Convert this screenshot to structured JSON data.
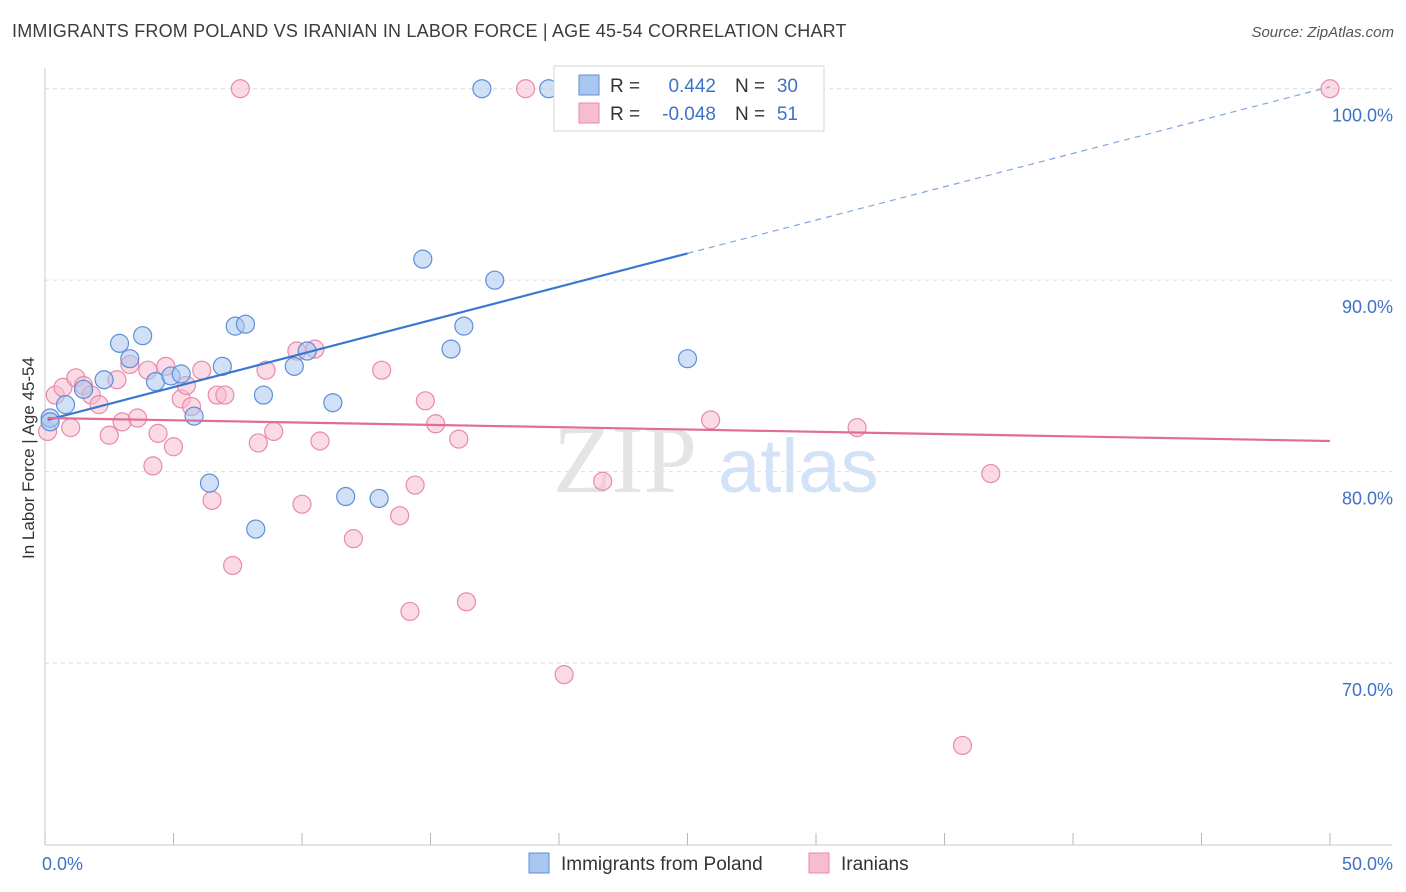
{
  "title": "IMMIGRANTS FROM POLAND VS IRANIAN IN LABOR FORCE | AGE 45-54 CORRELATION CHART",
  "source": "Source: ZipAtlas.com",
  "watermark": {
    "zip": "ZIP",
    "atlas": "atlas"
  },
  "colors": {
    "blue_fill": "#a9c6f0",
    "blue_stroke": "#5e8fd6",
    "blue_line": "#3a78d0",
    "pink_fill": "#f6bcd0",
    "pink_stroke": "#e98aa8",
    "pink_line": "#e06d97",
    "axis_text": "#3f72c4",
    "grid": "#dcdcdc"
  },
  "legend": {
    "rows": [
      {
        "r_label": "R =",
        "r_value": "0.442",
        "n_label": "N =",
        "n_value": "30"
      },
      {
        "r_label": "R =",
        "r_value": "-0.048",
        "n_label": "N =",
        "n_value": "51"
      }
    ]
  },
  "chart_data": {
    "type": "scatter",
    "xlabel": "",
    "ylabel": "In Labor Force | Age 45-54",
    "xlim": [
      0,
      50
    ],
    "ylim": [
      60.5,
      101.5
    ],
    "x_tick_labels": [
      "0.0%",
      "50.0%"
    ],
    "y_ticks": [
      70,
      80,
      90,
      100
    ],
    "y_tick_labels": [
      "70.0%",
      "80.0%",
      "90.0%",
      "100.0%"
    ],
    "grid": true,
    "legend_position": "top-center",
    "series": [
      {
        "name": "Immigrants from Poland",
        "points": [
          [
            0.2,
            82.8
          ],
          [
            0.8,
            83.5
          ],
          [
            1.5,
            84.3
          ],
          [
            2.3,
            84.8
          ],
          [
            2.9,
            86.7
          ],
          [
            3.3,
            85.9
          ],
          [
            3.8,
            87.1
          ],
          [
            4.3,
            84.7
          ],
          [
            4.9,
            85.0
          ],
          [
            5.3,
            85.1
          ],
          [
            5.8,
            82.9
          ],
          [
            6.4,
            79.4
          ],
          [
            6.9,
            85.5
          ],
          [
            7.4,
            87.6
          ],
          [
            7.8,
            87.7
          ],
          [
            8.2,
            77.0
          ],
          [
            8.5,
            84.0
          ],
          [
            9.7,
            85.5
          ],
          [
            10.2,
            86.3
          ],
          [
            11.2,
            83.6
          ],
          [
            11.7,
            78.7
          ],
          [
            13.0,
            78.6
          ],
          [
            14.7,
            91.1
          ],
          [
            15.8,
            86.4
          ],
          [
            16.3,
            87.6
          ],
          [
            17.0,
            100.0
          ],
          [
            17.5,
            90.0
          ],
          [
            19.6,
            100.0
          ],
          [
            25.0,
            85.9
          ],
          [
            0.2,
            82.6
          ]
        ]
      },
      {
        "name": "Iranians",
        "points": [
          [
            0.1,
            82.1
          ],
          [
            0.4,
            84.0
          ],
          [
            0.7,
            84.4
          ],
          [
            1.0,
            82.3
          ],
          [
            1.2,
            84.9
          ],
          [
            1.5,
            84.5
          ],
          [
            1.8,
            84.0
          ],
          [
            2.1,
            83.5
          ],
          [
            2.5,
            81.9
          ],
          [
            2.8,
            84.8
          ],
          [
            3.0,
            82.6
          ],
          [
            3.3,
            85.6
          ],
          [
            3.6,
            82.8
          ],
          [
            4.0,
            85.3
          ],
          [
            4.2,
            80.3
          ],
          [
            4.4,
            82.0
          ],
          [
            4.7,
            85.5
          ],
          [
            5.0,
            81.3
          ],
          [
            5.3,
            83.8
          ],
          [
            5.5,
            84.5
          ],
          [
            5.7,
            83.4
          ],
          [
            6.1,
            85.3
          ],
          [
            6.5,
            78.5
          ],
          [
            6.7,
            84.0
          ],
          [
            7.0,
            84.0
          ],
          [
            7.3,
            75.1
          ],
          [
            7.6,
            100.0
          ],
          [
            8.3,
            81.5
          ],
          [
            8.6,
            85.3
          ],
          [
            8.9,
            82.1
          ],
          [
            9.8,
            86.3
          ],
          [
            10.0,
            78.3
          ],
          [
            10.7,
            81.6
          ],
          [
            12.0,
            76.5
          ],
          [
            13.1,
            85.3
          ],
          [
            13.8,
            77.7
          ],
          [
            14.2,
            72.7
          ],
          [
            14.4,
            79.3
          ],
          [
            14.8,
            83.7
          ],
          [
            15.2,
            82.5
          ],
          [
            16.1,
            81.7
          ],
          [
            16.4,
            73.2
          ],
          [
            18.7,
            100.0
          ],
          [
            20.2,
            69.4
          ],
          [
            21.7,
            79.5
          ],
          [
            25.9,
            82.7
          ],
          [
            31.6,
            82.3
          ],
          [
            35.7,
            65.7
          ],
          [
            36.8,
            79.9
          ],
          [
            50.0,
            100.0
          ],
          [
            10.5,
            86.4
          ]
        ]
      }
    ],
    "trend_lines": [
      {
        "name": "Immigrants from Poland",
        "x": [
          0.1,
          25.0
        ],
        "y": [
          82.7,
          91.4
        ],
        "extended_to": [
          50.0,
          100.1
        ]
      },
      {
        "name": "Iranians",
        "x": [
          0.1,
          50.0
        ],
        "y": [
          82.8,
          81.6
        ]
      }
    ]
  }
}
